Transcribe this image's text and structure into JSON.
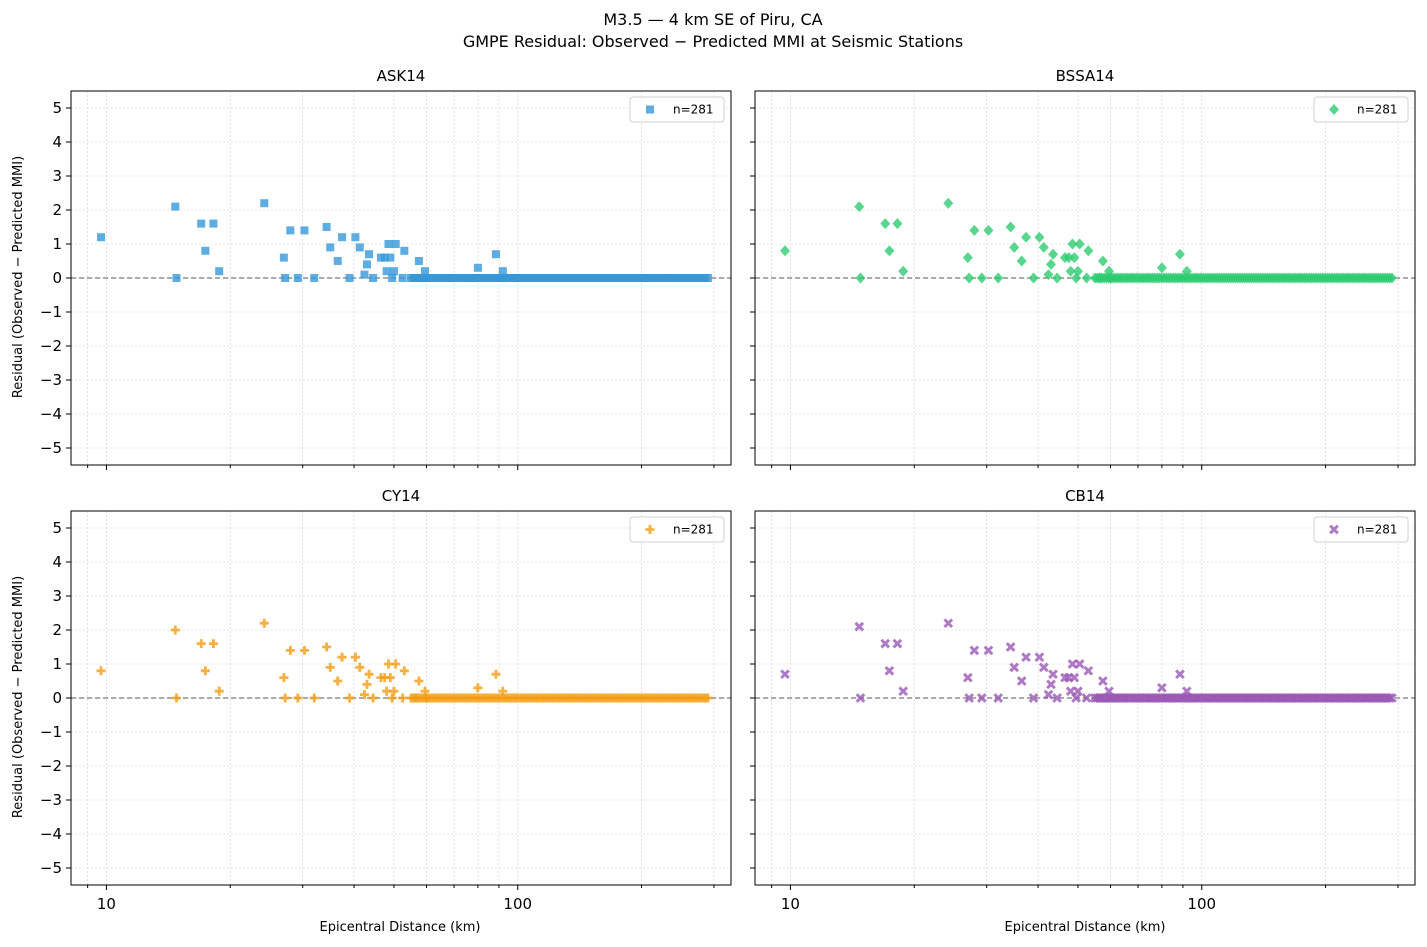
{
  "figure": {
    "title_line1": "M3.5 — 4 km SE of Piru, CA",
    "title_line2": "GMPE Residual: Observed − Predicted MMI at Seismic Stations",
    "xlabel": "Epicentral Distance (km)",
    "ylabel": "Residual (Observed − Predicted MMI)"
  },
  "chart_data": [
    {
      "type": "scatter",
      "title": "ASK14",
      "marker": "square",
      "color": "#3498db",
      "legend": "n=281",
      "legend_position": "top-right",
      "x_scale": "log",
      "xlim": [
        8.2,
        330
      ],
      "ylim": [
        -5.5,
        5.5
      ],
      "x_ticks": [
        10,
        100
      ],
      "y_ticks": [
        5,
        4,
        3,
        2,
        1,
        0,
        -1,
        -2,
        -3,
        -4,
        -5
      ],
      "grid": true,
      "reference_line_y": 0,
      "points": [
        [
          9.7,
          1.2
        ],
        [
          14.7,
          2.1
        ],
        [
          14.8,
          0
        ],
        [
          17,
          1.6
        ],
        [
          17.4,
          0.8
        ],
        [
          18.2,
          1.6
        ],
        [
          18.8,
          0.2
        ],
        [
          24.2,
          2.2
        ],
        [
          27,
          0.6
        ],
        [
          27.2,
          0
        ],
        [
          28,
          1.4
        ],
        [
          29.2,
          0
        ],
        [
          30.3,
          1.4
        ],
        [
          32,
          0
        ],
        [
          34.3,
          1.5
        ],
        [
          35,
          0.9
        ],
        [
          36.5,
          0.5
        ],
        [
          37.4,
          1.2
        ],
        [
          39,
          0
        ],
        [
          40.3,
          1.2
        ],
        [
          41.3,
          0.9
        ],
        [
          42.4,
          0.1
        ],
        [
          43,
          0.4
        ],
        [
          43.5,
          0.7
        ],
        [
          44.5,
          0
        ],
        [
          46.5,
          0.6
        ],
        [
          47.5,
          0.6
        ],
        [
          48,
          0.2
        ],
        [
          48.5,
          1
        ],
        [
          49,
          0.6
        ],
        [
          49.5,
          0
        ],
        [
          50,
          0.2
        ],
        [
          50.5,
          1
        ],
        [
          52.5,
          0
        ],
        [
          53,
          0.8
        ],
        [
          56.5,
          0
        ],
        [
          57.5,
          0.5
        ],
        [
          59.5,
          0.2
        ],
        [
          60,
          0
        ],
        [
          80,
          0.3
        ],
        [
          88.5,
          0.7
        ],
        [
          92,
          0.2
        ]
      ],
      "zero_band_x_range": [
        55,
        290
      ]
    },
    {
      "type": "scatter",
      "title": "BSSA14",
      "marker": "diamond",
      "color": "#2ecc71",
      "legend": "n=281",
      "legend_position": "top-right",
      "x_scale": "log",
      "xlim": [
        8.2,
        330
      ],
      "ylim": [
        -5.5,
        5.5
      ],
      "x_ticks": [
        10,
        100
      ],
      "y_ticks": [
        5,
        4,
        3,
        2,
        1,
        0,
        -1,
        -2,
        -3,
        -4,
        -5
      ],
      "grid": true,
      "reference_line_y": 0,
      "points": [
        [
          9.7,
          0.8
        ],
        [
          14.7,
          2.1
        ],
        [
          14.8,
          0
        ],
        [
          17,
          1.6
        ],
        [
          17.4,
          0.8
        ],
        [
          18.2,
          1.6
        ],
        [
          18.8,
          0.2
        ],
        [
          24.2,
          2.2
        ],
        [
          27,
          0.6
        ],
        [
          27.2,
          0
        ],
        [
          28,
          1.4
        ],
        [
          29.2,
          0
        ],
        [
          30.3,
          1.4
        ],
        [
          32,
          0
        ],
        [
          34.3,
          1.5
        ],
        [
          35,
          0.9
        ],
        [
          36.5,
          0.5
        ],
        [
          37.4,
          1.2
        ],
        [
          39,
          0
        ],
        [
          40.3,
          1.2
        ],
        [
          41.3,
          0.9
        ],
        [
          42.4,
          0.1
        ],
        [
          43,
          0.4
        ],
        [
          43.5,
          0.7
        ],
        [
          44.5,
          0
        ],
        [
          46.5,
          0.6
        ],
        [
          47.5,
          0.6
        ],
        [
          48,
          0.2
        ],
        [
          48.5,
          1
        ],
        [
          49,
          0.6
        ],
        [
          49.5,
          0
        ],
        [
          50,
          0.2
        ],
        [
          50.5,
          1
        ],
        [
          52.5,
          0
        ],
        [
          53,
          0.8
        ],
        [
          56.5,
          0
        ],
        [
          57.5,
          0.5
        ],
        [
          59.5,
          0.2
        ],
        [
          60,
          0
        ],
        [
          80,
          0.3
        ],
        [
          88.5,
          0.7
        ],
        [
          92,
          0.2
        ]
      ],
      "zero_band_x_range": [
        55,
        290
      ]
    },
    {
      "type": "scatter",
      "title": "CY14",
      "marker": "plus",
      "color": "#f39c12",
      "legend": "n=281",
      "legend_position": "top-right",
      "x_scale": "log",
      "xlim": [
        8.2,
        330
      ],
      "ylim": [
        -5.5,
        5.5
      ],
      "x_ticks": [
        10,
        100
      ],
      "y_ticks": [
        5,
        4,
        3,
        2,
        1,
        0,
        -1,
        -2,
        -3,
        -4,
        -5
      ],
      "grid": true,
      "reference_line_y": 0,
      "points": [
        [
          9.7,
          0.8
        ],
        [
          14.7,
          2
        ],
        [
          14.8,
          0
        ],
        [
          17,
          1.6
        ],
        [
          17.4,
          0.8
        ],
        [
          18.2,
          1.6
        ],
        [
          18.8,
          0.2
        ],
        [
          24.2,
          2.2
        ],
        [
          27,
          0.6
        ],
        [
          27.2,
          0
        ],
        [
          28,
          1.4
        ],
        [
          29.2,
          0
        ],
        [
          30.3,
          1.4
        ],
        [
          32,
          0
        ],
        [
          34.3,
          1.5
        ],
        [
          35,
          0.9
        ],
        [
          36.5,
          0.5
        ],
        [
          37.4,
          1.2
        ],
        [
          39,
          0
        ],
        [
          40.3,
          1.2
        ],
        [
          41.3,
          0.9
        ],
        [
          42.4,
          0.1
        ],
        [
          43,
          0.4
        ],
        [
          43.5,
          0.7
        ],
        [
          44.5,
          0
        ],
        [
          46.5,
          0.6
        ],
        [
          47.5,
          0.6
        ],
        [
          48,
          0.2
        ],
        [
          48.5,
          1
        ],
        [
          49,
          0.6
        ],
        [
          49.5,
          0
        ],
        [
          50,
          0.2
        ],
        [
          50.5,
          1
        ],
        [
          52.5,
          0
        ],
        [
          53,
          0.8
        ],
        [
          56.5,
          0
        ],
        [
          57.5,
          0.5
        ],
        [
          59.5,
          0.2
        ],
        [
          60,
          0
        ],
        [
          80,
          0.3
        ],
        [
          88.5,
          0.7
        ],
        [
          92,
          0.2
        ]
      ],
      "zero_band_x_range": [
        55,
        290
      ]
    },
    {
      "type": "scatter",
      "title": "CB14",
      "marker": "x",
      "color": "#9b59b6",
      "legend": "n=281",
      "legend_position": "top-right",
      "x_scale": "log",
      "xlim": [
        8.2,
        330
      ],
      "ylim": [
        -5.5,
        5.5
      ],
      "x_ticks": [
        10,
        100
      ],
      "y_ticks": [
        5,
        4,
        3,
        2,
        1,
        0,
        -1,
        -2,
        -3,
        -4,
        -5
      ],
      "grid": true,
      "reference_line_y": 0,
      "points": [
        [
          9.7,
          0.7
        ],
        [
          14.7,
          2.1
        ],
        [
          14.8,
          0
        ],
        [
          17,
          1.6
        ],
        [
          17.4,
          0.8
        ],
        [
          18.2,
          1.6
        ],
        [
          18.8,
          0.2
        ],
        [
          24.2,
          2.2
        ],
        [
          27,
          0.6
        ],
        [
          27.2,
          0
        ],
        [
          28,
          1.4
        ],
        [
          29.2,
          0
        ],
        [
          30.3,
          1.4
        ],
        [
          32,
          0
        ],
        [
          34.3,
          1.5
        ],
        [
          35,
          0.9
        ],
        [
          36.5,
          0.5
        ],
        [
          37.4,
          1.2
        ],
        [
          39,
          0
        ],
        [
          40.3,
          1.2
        ],
        [
          41.3,
          0.9
        ],
        [
          42.4,
          0.1
        ],
        [
          43,
          0.4
        ],
        [
          43.5,
          0.7
        ],
        [
          44.5,
          0
        ],
        [
          46.5,
          0.6
        ],
        [
          47.5,
          0.6
        ],
        [
          48,
          0.2
        ],
        [
          48.5,
          1
        ],
        [
          49,
          0.6
        ],
        [
          49.5,
          0
        ],
        [
          50,
          0.2
        ],
        [
          50.5,
          1
        ],
        [
          52.5,
          0
        ],
        [
          53,
          0.8
        ],
        [
          56.5,
          0
        ],
        [
          57.5,
          0.5
        ],
        [
          59.5,
          0.2
        ],
        [
          60,
          0
        ],
        [
          80,
          0.3
        ],
        [
          88.5,
          0.7
        ],
        [
          92,
          0.2
        ]
      ],
      "zero_band_x_range": [
        55,
        290
      ]
    }
  ]
}
